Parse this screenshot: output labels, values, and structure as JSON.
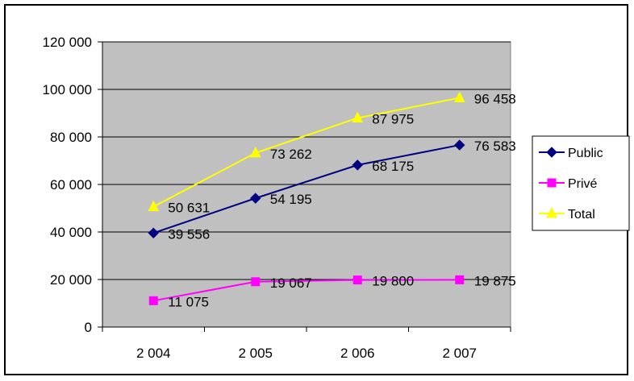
{
  "chart_data": {
    "type": "line",
    "title": "",
    "xlabel": "",
    "ylabel": "",
    "categories": [
      "2 004",
      "2 005",
      "2 006",
      "2 007"
    ],
    "ylim": [
      0,
      120000
    ],
    "yticks": [
      0,
      20000,
      40000,
      60000,
      80000,
      100000,
      120000
    ],
    "ytick_labels": [
      "0",
      "20 000",
      "40 000",
      "60 000",
      "80 000",
      "100 000",
      "120 000"
    ],
    "grid": true,
    "legend_position": "right",
    "plot_background": "#c0c0c0",
    "series": [
      {
        "name": "Public",
        "color": "#000080",
        "marker": "diamond",
        "values": [
          39556,
          54195,
          68175,
          76583
        ],
        "labels": [
          "39 556",
          "54 195",
          "68 175",
          "76 583"
        ]
      },
      {
        "name": "Privé",
        "color": "#ff00ff",
        "marker": "square",
        "values": [
          11075,
          19067,
          19800,
          19875
        ],
        "labels": [
          "11 075",
          "19 067",
          "19 800",
          "19 875"
        ]
      },
      {
        "name": "Total",
        "color": "#ffff00",
        "marker": "triangle",
        "values": [
          50631,
          73262,
          87975,
          96458
        ],
        "labels": [
          "50 631",
          "73 262",
          "87 975",
          "96 458"
        ]
      }
    ]
  }
}
